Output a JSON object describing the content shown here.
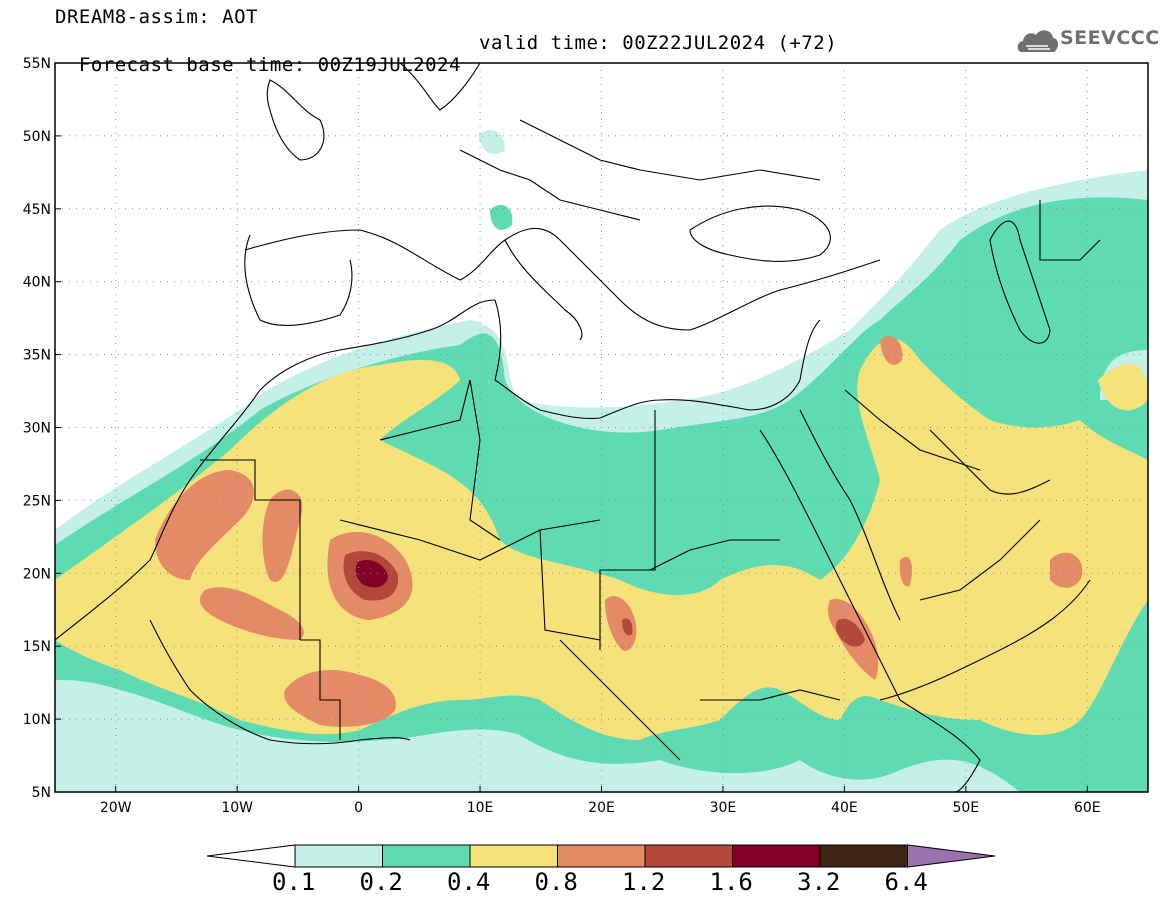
{
  "header": {
    "title": "DREAM8-assim: AOT",
    "base_time": "Forecast base time: 00Z19JUL2024",
    "valid_time": "valid time: 00Z22JUL2024 (+72)"
  },
  "logo": {
    "text": "SEEVCCC"
  },
  "map": {
    "projection": "equirectangular",
    "lon_range": [
      -25,
      65
    ],
    "lat_range": [
      5,
      55
    ],
    "lat_ticks": [
      "5N",
      "10N",
      "15N",
      "20N",
      "25N",
      "30N",
      "35N",
      "40N",
      "45N",
      "50N",
      "55N"
    ],
    "lon_ticks": [
      "20W",
      "10W",
      "0",
      "10E",
      "20E",
      "30E",
      "40E",
      "50E",
      "60E"
    ],
    "gridlines": "dotted"
  },
  "colorbar": {
    "labels": [
      "0.1",
      "0.2",
      "0.4",
      "0.8",
      "1.2",
      "1.6",
      "3.2",
      "6.4"
    ],
    "colors": [
      "#c4f0e8",
      "#5edbb2",
      "#f5e27a",
      "#e48a66",
      "#b3473a",
      "#820026",
      "#3e2616",
      "#9a72b0"
    ],
    "below_color": "#ffffff"
  },
  "field_colors": {
    "c1": "#c4f0e8",
    "c2": "#5edbb2",
    "c3": "#f5e27a",
    "c4": "#e48a66",
    "c5": "#b3473a",
    "c6": "#820026"
  }
}
